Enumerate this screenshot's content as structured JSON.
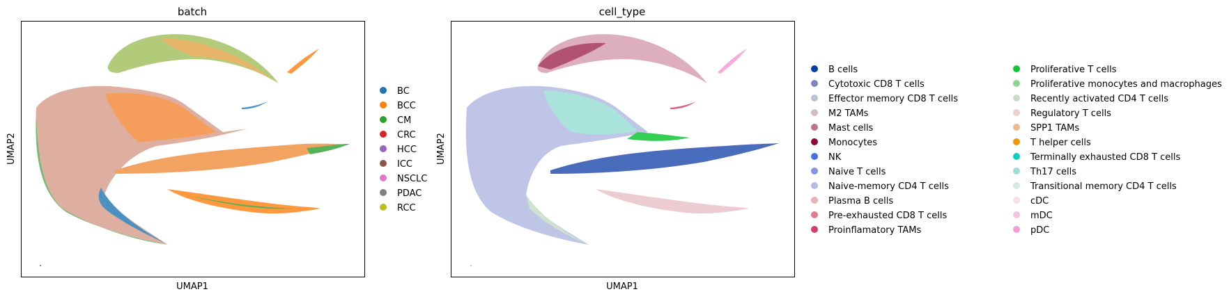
{
  "chart_data": [
    {
      "type": "scatter",
      "title": "batch",
      "xlabel": "UMAP1",
      "ylabel": "UMAP2",
      "grid": false,
      "legend_placement": "right",
      "series": [
        {
          "name": "BC",
          "color": "#1f77b4"
        },
        {
          "name": "BCC",
          "color": "#ff7f0e"
        },
        {
          "name": "CM",
          "color": "#2ca02c"
        },
        {
          "name": "CRC",
          "color": "#d62728"
        },
        {
          "name": "HCC",
          "color": "#9467bd"
        },
        {
          "name": "ICC",
          "color": "#8c564b"
        },
        {
          "name": "NSCLC",
          "color": "#e377c2"
        },
        {
          "name": "PDAC",
          "color": "#7f7f7f"
        },
        {
          "name": "RCC",
          "color": "#bcbd22"
        }
      ]
    },
    {
      "type": "scatter",
      "title": "cell_type",
      "xlabel": "UMAP1",
      "ylabel": "UMAP2",
      "grid": false,
      "legend_placement": "right",
      "series": [
        {
          "name": "B cells",
          "color": "#023fa5"
        },
        {
          "name": "Cytotoxic CD8 T cells",
          "color": "#7d87b9"
        },
        {
          "name": "Effector memory CD8 T cells",
          "color": "#bec1d4"
        },
        {
          "name": "M2 TAMs",
          "color": "#d6bcc0"
        },
        {
          "name": "Mast cells",
          "color": "#bb7784"
        },
        {
          "name": "Monocytes",
          "color": "#8e063b"
        },
        {
          "name": "NK",
          "color": "#4a6fe3"
        },
        {
          "name": "Naive T cells",
          "color": "#8595e1"
        },
        {
          "name": "Naive-memory CD4 T cells",
          "color": "#b5bbe3"
        },
        {
          "name": "Plasma B cells",
          "color": "#e6afb9"
        },
        {
          "name": "Pre-exhausted CD8 T cells",
          "color": "#e07b91"
        },
        {
          "name": "Proinflamatory TAMs",
          "color": "#d33f6a"
        },
        {
          "name": "Proliferative T cells",
          "color": "#11c638"
        },
        {
          "name": "Proliferative monocytes and macrophages",
          "color": "#8dd593"
        },
        {
          "name": "Recently activated CD4 T cells",
          "color": "#c6dec7"
        },
        {
          "name": "Regulatory T cells",
          "color": "#ead3c6"
        },
        {
          "name": "SPP1 TAMs",
          "color": "#f0b98d"
        },
        {
          "name": "T helper cells",
          "color": "#ef9708"
        },
        {
          "name": "Terminally exhausted CD8 T cells",
          "color": "#0fcfc0"
        },
        {
          "name": "Th17 cells",
          "color": "#9cded6"
        },
        {
          "name": "Transitional memory CD4 T cells",
          "color": "#d5eae7"
        },
        {
          "name": "cDC",
          "color": "#f3e1eb"
        },
        {
          "name": "mDC",
          "color": "#f6c4e1"
        },
        {
          "name": "pDC",
          "color": "#f79cd4"
        }
      ]
    }
  ]
}
